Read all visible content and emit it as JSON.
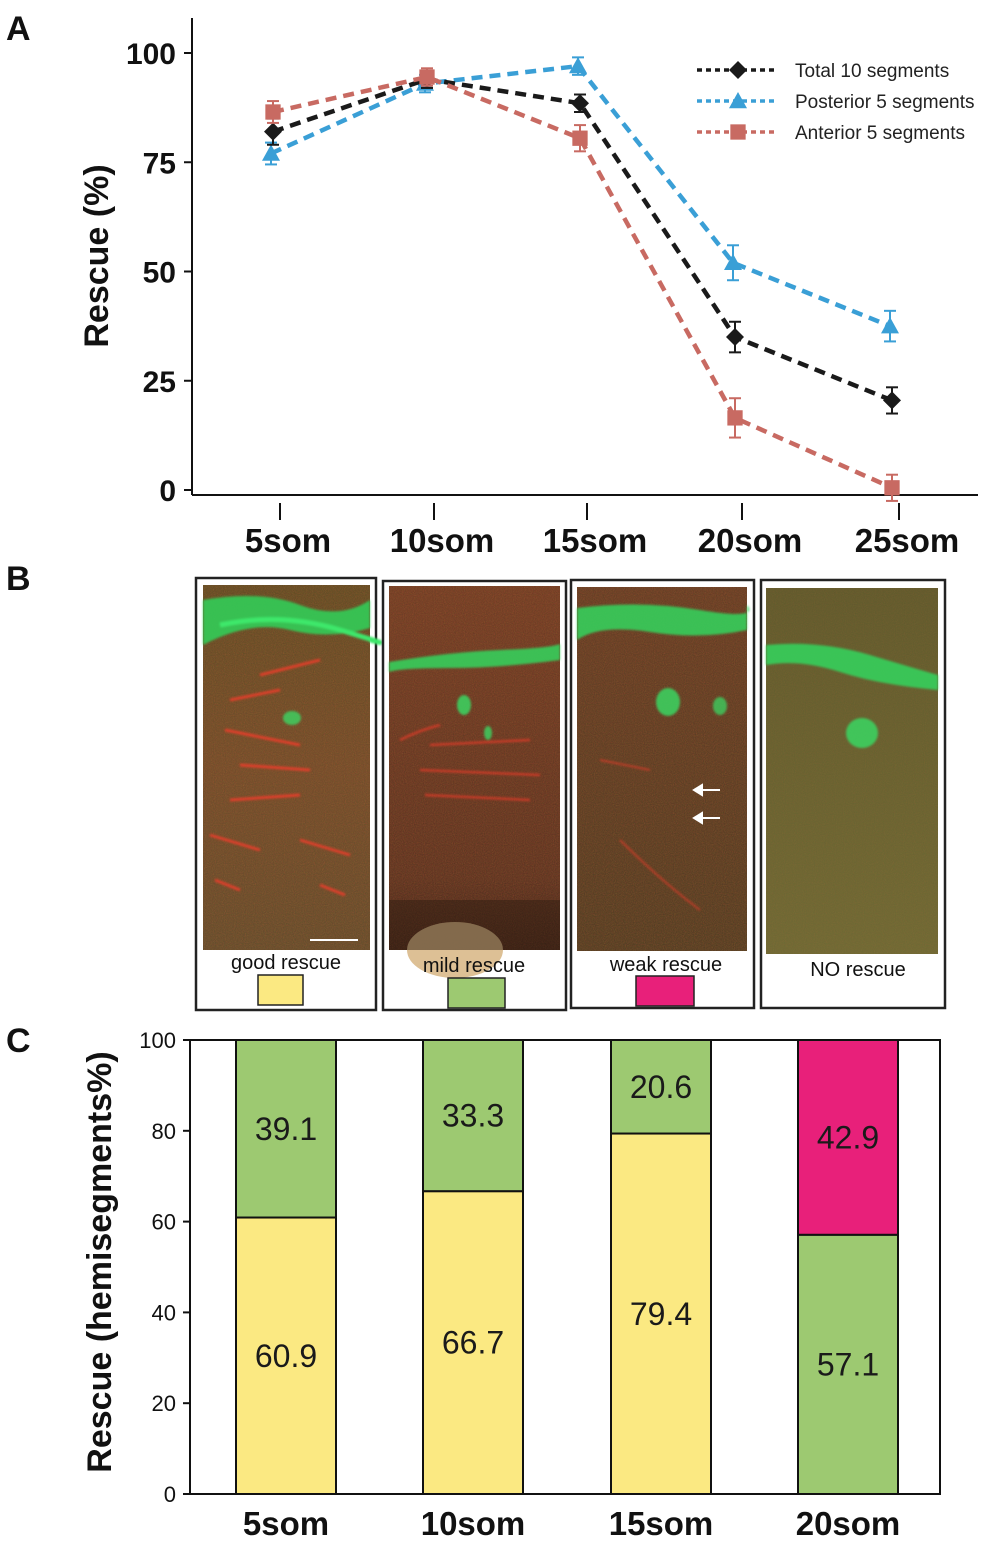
{
  "figure": {
    "panel_letters": [
      "A",
      "B",
      "C"
    ]
  },
  "chart_data": [
    {
      "type": "line",
      "panel": "A",
      "ylabel": "Rescue (%)",
      "xlabel": "",
      "categories": [
        "5som",
        "10som",
        "15som",
        "20som",
        "25som"
      ],
      "ylim": [
        0,
        100
      ],
      "yticks": [
        0,
        25,
        50,
        75,
        100
      ],
      "series": [
        {
          "name": "Total 10 segments",
          "color": "#1a1a1a",
          "marker": "diamond",
          "values": [
            82,
            94,
            88.5,
            35,
            20.5
          ],
          "errors": [
            3,
            2,
            2,
            3.5,
            3
          ]
        },
        {
          "name": "Posterior 5 segments",
          "color": "#3a9fd6",
          "marker": "triangle",
          "values": [
            77,
            93,
            97,
            52,
            37.5
          ],
          "errors": [
            2.5,
            2,
            2,
            4,
            3.5
          ]
        },
        {
          "name": "Anterior 5 segments",
          "color": "#c86a62",
          "marker": "square",
          "values": [
            86.5,
            94.5,
            80.5,
            16.5,
            0.5
          ],
          "errors": [
            2.5,
            2,
            3,
            4.5,
            3
          ]
        }
      ],
      "legend_position": "top-right",
      "style": "dashed lines with error bars"
    },
    {
      "type": "bar",
      "panel": "C",
      "stacked": true,
      "ylabel": "Rescue (hemisegments%)",
      "xlabel": "",
      "categories": [
        "5som",
        "10som",
        "15som",
        "20som"
      ],
      "ylim": [
        0,
        100
      ],
      "yticks": [
        0,
        20,
        40,
        60,
        80,
        100
      ],
      "bars": [
        {
          "segments": [
            {
              "category": "good rescue",
              "value": 60.9,
              "label": "60.9"
            },
            {
              "category": "mild rescue",
              "value": 39.1,
              "label": "39.1"
            }
          ]
        },
        {
          "segments": [
            {
              "category": "good rescue",
              "value": 66.7,
              "label": "66.7"
            },
            {
              "category": "mild rescue",
              "value": 33.3,
              "label": "33.3"
            }
          ]
        },
        {
          "segments": [
            {
              "category": "good rescue",
              "value": 79.4,
              "label": "79.4"
            },
            {
              "category": "mild rescue",
              "value": 20.6,
              "label": "20.6"
            }
          ]
        },
        {
          "segments": [
            {
              "category": "mild rescue",
              "value": 57.1,
              "label": "57.1"
            },
            {
              "category": "weak rescue",
              "value": 42.9,
              "label": "42.9"
            }
          ]
        }
      ],
      "colors": {
        "good rescue": "#fbe982",
        "mild rescue": "#9dc971",
        "weak rescue": "#e8207a",
        "NO rescue": "#ffffff"
      }
    }
  ],
  "panel_b": {
    "images": [
      {
        "caption": "good rescue",
        "swatch_color": "#fbe982",
        "has_scale_bar": true,
        "has_arrows": false
      },
      {
        "caption": "mild rescue",
        "swatch_color": "#9dc971",
        "has_scale_bar": false,
        "has_arrows": false
      },
      {
        "caption": "weak rescue",
        "swatch_color": "#e8207a",
        "has_scale_bar": false,
        "has_arrows": true
      },
      {
        "caption": "NO rescue",
        "swatch_color": null,
        "has_scale_bar": false,
        "has_arrows": false
      }
    ]
  }
}
